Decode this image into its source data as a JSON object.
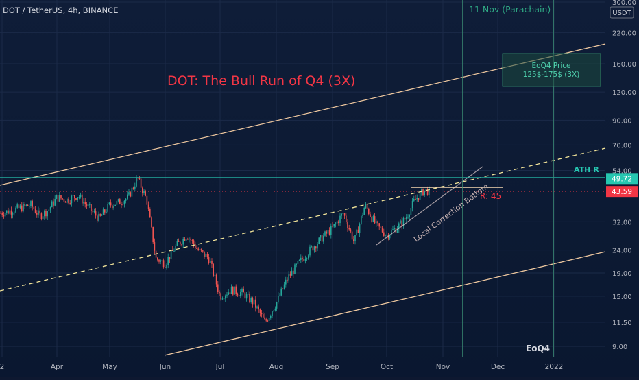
{
  "header": {
    "symbol_line": "DOT / TetherUS, 4h, BINANCE"
  },
  "currency_label": "USDT",
  "chart_data": {
    "type": "candlestick",
    "title": "DOT: The Bull Run of Q4 (3X)",
    "y_scale": "log",
    "y_ticks": [
      "300.00",
      "220.00",
      "160.00",
      "120.00",
      "90.00",
      "70.00",
      "54.00",
      "32.00",
      "24.00",
      "19.00",
      "15.00",
      "11.50",
      "9.00"
    ],
    "x_ticks": [
      "2",
      "Apr",
      "May",
      "Jun",
      "Jul",
      "Aug",
      "Sep",
      "Oct",
      "Nov",
      "Dec",
      "2022"
    ],
    "price_badges": [
      {
        "value": "49.72",
        "color": "#26c6b0"
      },
      {
        "value": "43.59",
        "color": "#f23645"
      }
    ],
    "annotations": {
      "vline_event": "11 Nov (Parachain)",
      "vline_end": "EoQ4",
      "target_box": {
        "line1": "EoQ4 Price",
        "line2": "125$-175$ (3X)",
        "low": 125,
        "high": 175
      },
      "ath_label": "ATH R",
      "ath_level": 49.72,
      "resistance_label": "R: 45",
      "resistance_level": 45,
      "trendline_label": "Local Correction Bottom"
    },
    "close_path": [
      [
        "2",
        35
      ],
      [
        "Mar",
        38
      ],
      [
        "Mar",
        34
      ],
      [
        "Mar",
        36
      ],
      [
        "Apr",
        41
      ],
      [
        "Apr",
        40
      ],
      [
        "Apr",
        42
      ],
      [
        "Apr",
        37
      ],
      [
        "Apr",
        33
      ],
      [
        "May",
        38
      ],
      [
        "May",
        39
      ],
      [
        "May",
        41
      ],
      [
        "May",
        50
      ],
      [
        "May",
        40
      ],
      [
        "May",
        22
      ],
      [
        "Jun",
        21
      ],
      [
        "Jun",
        25
      ],
      [
        "Jun",
        28
      ],
      [
        "Jun",
        24
      ],
      [
        "Jun",
        22
      ],
      [
        "Jul",
        15
      ],
      [
        "Jul",
        16
      ],
      [
        "Jul",
        15.5
      ],
      [
        "Jul",
        14
      ],
      [
        "Jul",
        11.5
      ],
      [
        "Aug",
        14
      ],
      [
        "Aug",
        18
      ],
      [
        "Aug",
        21
      ],
      [
        "Aug",
        24
      ],
      [
        "Aug",
        27
      ],
      [
        "Sep",
        30
      ],
      [
        "Sep",
        35
      ],
      [
        "Sep",
        26
      ],
      [
        "Sep",
        38
      ],
      [
        "Sep",
        31
      ],
      [
        "Oct",
        28
      ],
      [
        "Oct",
        30
      ],
      [
        "Oct",
        33
      ],
      [
        "Oct",
        40
      ],
      [
        "Oct",
        44
      ],
      [
        "Oct",
        43.59
      ]
    ],
    "colors": {
      "up": "#26a69a",
      "down": "#ef5350",
      "channel": "#f0c9a0",
      "midline": "#f3e59a",
      "vline": "#3b8c73",
      "ath": "#26c6b0",
      "title": "#f23645"
    }
  }
}
